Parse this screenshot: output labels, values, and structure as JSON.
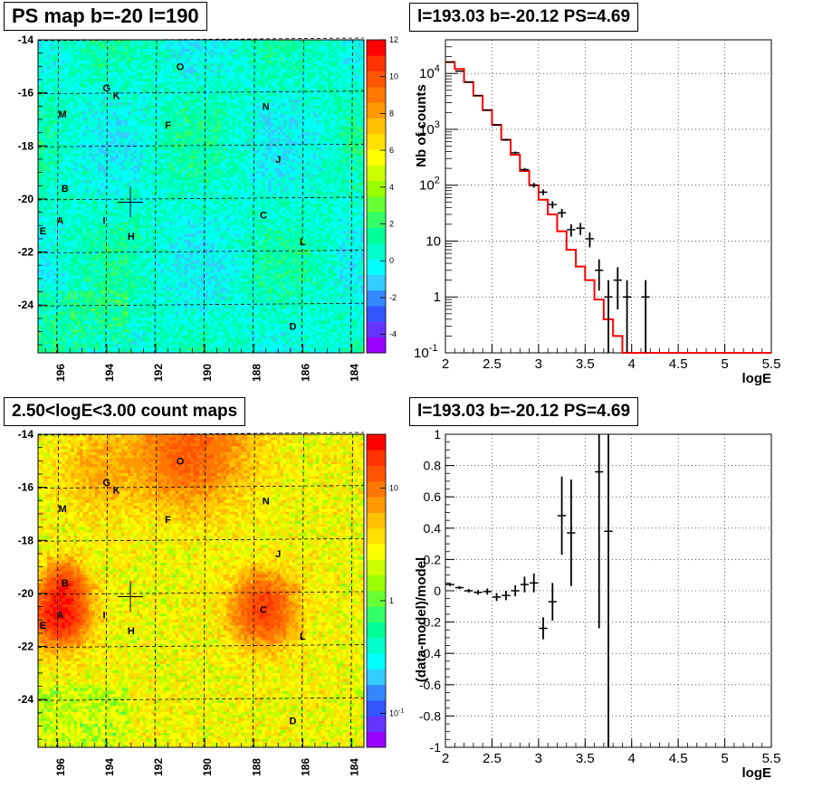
{
  "chart_data": [
    {
      "type": "heatmap",
      "title": "PS map b=-20 l=190",
      "xlabel": "",
      "ylabel": "",
      "xlim": [
        196.8,
        183.5
      ],
      "ylim": [
        -25.8,
        -14
      ],
      "x_ticks": [
        196,
        194,
        192,
        190,
        188,
        186,
        184
      ],
      "y_ticks": [
        -14,
        -16,
        -18,
        -20,
        -22,
        -24
      ],
      "colorbar": {
        "range": [
          -5,
          12
        ],
        "ticks": [
          "12",
          "10",
          "8",
          "6",
          "4",
          "2",
          "0",
          "-2",
          "-4"
        ],
        "scale": "linear"
      },
      "grid": true,
      "marker": {
        "l": 193.03,
        "b": -20.12
      },
      "sources": [
        {
          "label": "O",
          "l": 191.0,
          "b": -15.0
        },
        {
          "label": "G",
          "l": 194.0,
          "b": -15.8
        },
        {
          "label": "K",
          "l": 193.6,
          "b": -16.1
        },
        {
          "label": "M",
          "l": 195.8,
          "b": -16.8
        },
        {
          "label": "N",
          "l": 187.5,
          "b": -16.5
        },
        {
          "label": "F",
          "l": 191.5,
          "b": -17.2
        },
        {
          "label": "J",
          "l": 187.0,
          "b": -18.5
        },
        {
          "label": "B",
          "l": 195.7,
          "b": -19.6
        },
        {
          "label": "A",
          "l": 195.9,
          "b": -20.8
        },
        {
          "label": "I",
          "l": 194.1,
          "b": -20.8
        },
        {
          "label": "C",
          "l": 187.6,
          "b": -20.6
        },
        {
          "label": "E",
          "l": 196.6,
          "b": -21.2
        },
        {
          "label": "H",
          "l": 193.0,
          "b": -21.4
        },
        {
          "label": "L",
          "l": 186.0,
          "b": -21.6
        },
        {
          "label": "D",
          "l": 186.4,
          "b": -24.8
        }
      ]
    },
    {
      "type": "line",
      "title": "l=193.03 b=-20.12 PS=4.69",
      "xlabel": "logE",
      "ylabel": "Nb of counts",
      "xlim": [
        2,
        5.5
      ],
      "ylim": [
        0.1,
        40000
      ],
      "yscale": "log",
      "x_ticks": [
        "2",
        "2.5",
        "3",
        "3.5",
        "4",
        "4.5",
        "5",
        "5.5"
      ],
      "y_ticks": [
        {
          "v": 0.1,
          "base": "10",
          "exp": "-1"
        },
        {
          "v": 1,
          "base": "1",
          "exp": ""
        },
        {
          "v": 10,
          "base": "10",
          "exp": ""
        },
        {
          "v": 100,
          "base": "10",
          "exp": "2"
        },
        {
          "v": 1000,
          "base": "10",
          "exp": "3"
        },
        {
          "v": 10000,
          "base": "10",
          "exp": "4"
        }
      ],
      "grid": true,
      "series": [
        {
          "color": "#ff0000",
          "style": "histogram",
          "bin_width": 0.1,
          "x": [
            2.05,
            2.15,
            2.25,
            2.35,
            2.45,
            2.55,
            2.65,
            2.75,
            2.85,
            2.95,
            3.05,
            3.15,
            3.25,
            3.35,
            3.45,
            3.55,
            3.65,
            3.75,
            3.85,
            3.95,
            4.05,
            4.15,
            4.25,
            4.35,
            4.45,
            4.55,
            4.65,
            4.75,
            4.85,
            4.95,
            5.05,
            5.15,
            5.25,
            5.35,
            5.45
          ],
          "values": [
            16000,
            12000,
            7000,
            4000,
            2200,
            1200,
            650,
            350,
            180,
            100,
            55,
            30,
            15,
            7,
            3.5,
            2,
            0.9,
            0.4,
            0.2,
            0.1,
            0.1,
            0.1,
            0.1,
            0.1,
            0.1,
            0.1,
            0.1,
            0.1,
            0.1,
            0.1,
            0.1,
            0.1,
            0.1,
            0.1,
            0.1
          ]
        },
        {
          "color": "#000000",
          "style": "errorbar",
          "x": [
            2.05,
            2.15,
            2.25,
            2.35,
            2.45,
            2.55,
            2.65,
            2.75,
            2.85,
            2.95,
            3.05,
            3.15,
            3.25,
            3.35,
            3.45,
            3.55,
            3.65,
            3.75,
            3.85,
            3.95,
            4.15
          ],
          "values": [
            16000,
            11000,
            7000,
            4000,
            2200,
            1200,
            650,
            380,
            190,
            100,
            75,
            45,
            32,
            16,
            17,
            11,
            3,
            1,
            2,
            1,
            1
          ],
          "err": [
            130,
            110,
            85,
            65,
            47,
            35,
            26,
            20,
            14,
            10,
            8.7,
            6.7,
            5.7,
            4,
            4.1,
            3.3,
            1.7,
            1,
            1.4,
            1,
            1
          ]
        }
      ]
    },
    {
      "type": "heatmap",
      "title": "2.50<logE<3.00 count maps",
      "xlabel": "",
      "ylabel": "",
      "xlim": [
        196.8,
        183.5
      ],
      "ylim": [
        -25.8,
        -14
      ],
      "x_ticks": [
        196,
        194,
        192,
        190,
        188,
        186,
        184
      ],
      "y_ticks": [
        -14,
        -16,
        -18,
        -20,
        -22,
        -24
      ],
      "colorbar": {
        "range": [
          0.05,
          30
        ],
        "scale": "log",
        "ticks": [
          {
            "v": 10,
            "base": "10",
            "exp": ""
          },
          {
            "v": 1,
            "base": "1",
            "exp": ""
          },
          {
            "v": 0.1,
            "base": "10",
            "exp": "-1"
          }
        ]
      },
      "grid": true,
      "marker": {
        "l": 193.03,
        "b": -20.12
      },
      "hotspots": [
        {
          "l": 195.9,
          "b": -20.8,
          "amp": 18,
          "sigma": 0.7
        },
        {
          "l": 195.7,
          "b": -19.6,
          "amp": 10,
          "sigma": 0.5
        },
        {
          "l": 187.6,
          "b": -20.6,
          "amp": 12,
          "sigma": 0.8
        },
        {
          "l": 191.0,
          "b": -14.8,
          "amp": 5,
          "sigma": 1.2
        },
        {
          "l": 194.2,
          "b": -15.4,
          "amp": 3,
          "sigma": 1.0
        },
        {
          "l": 190.0,
          "b": -14.3,
          "amp": 4,
          "sigma": 1.5
        }
      ]
    },
    {
      "type": "scatter",
      "title": "l=193.03 b=-20.12 PS=4.69",
      "xlabel": "logE",
      "ylabel": "(data-model)/model",
      "xlim": [
        2,
        5.5
      ],
      "ylim": [
        -1,
        1
      ],
      "x_ticks": [
        "2",
        "2.5",
        "3",
        "3.5",
        "4",
        "4.5",
        "5",
        "5.5"
      ],
      "y_ticks": [
        "1",
        "0.8",
        "0.6",
        "0.4",
        "0.2",
        "0",
        "-0.2",
        "-0.4",
        "-0.6",
        "-0.8",
        "-1"
      ],
      "grid": true,
      "series": [
        {
          "color": "#000000",
          "style": "errorbar",
          "x": [
            2.05,
            2.15,
            2.25,
            2.35,
            2.45,
            2.55,
            2.65,
            2.75,
            2.85,
            2.95,
            3.05,
            3.15,
            3.25,
            3.35,
            3.65,
            3.75
          ],
          "values": [
            0.04,
            0.02,
            0.0,
            -0.01,
            -0.005,
            -0.04,
            -0.03,
            0.0,
            0.04,
            0.05,
            -0.24,
            -0.07,
            0.48,
            0.37,
            0.76,
            0.38
          ],
          "err": [
            0.01,
            0.01,
            0.012,
            0.015,
            0.02,
            0.025,
            0.03,
            0.035,
            0.05,
            0.06,
            0.07,
            0.12,
            0.25,
            0.34,
            1.0,
            1.5
          ]
        }
      ]
    }
  ]
}
